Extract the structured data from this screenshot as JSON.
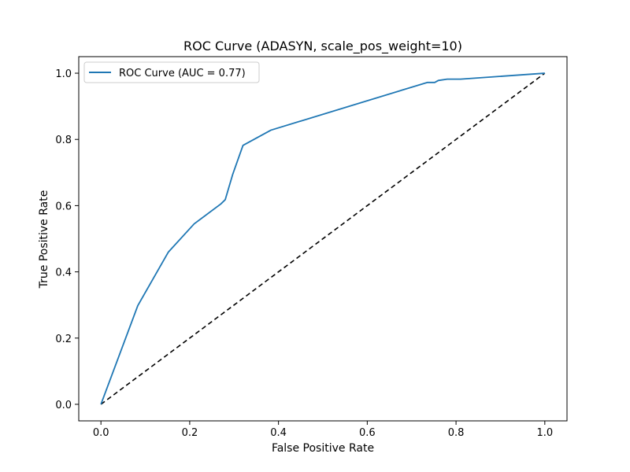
{
  "chart_data": {
    "type": "line",
    "title": "ROC Curve (ADASYN, scale_pos_weight=10)",
    "xlabel": "False Positive Rate",
    "ylabel": "True Positive Rate",
    "xlim": [
      -0.05,
      1.05
    ],
    "ylim": [
      -0.05,
      1.05
    ],
    "xticks": [
      "0.0",
      "0.2",
      "0.4",
      "0.6",
      "0.8",
      "1.0"
    ],
    "yticks": [
      "0.0",
      "0.2",
      "0.4",
      "0.6",
      "0.8",
      "1.0"
    ],
    "grid": false,
    "legend": "upper-left",
    "series": [
      {
        "name": "ROC Curve (AUC = 0.77)",
        "color": "#1f77b4",
        "style": "solid",
        "x": [
          0.0,
          0.083,
          0.152,
          0.21,
          0.27,
          0.28,
          0.297,
          0.32,
          0.383,
          0.735,
          0.752,
          0.76,
          0.78,
          0.81,
          1.0
        ],
        "y": [
          0.0,
          0.298,
          0.46,
          0.545,
          0.605,
          0.618,
          0.695,
          0.782,
          0.828,
          0.972,
          0.972,
          0.978,
          0.982,
          0.982,
          1.0
        ]
      },
      {
        "name": "",
        "color": "#000000",
        "style": "dashed",
        "x": [
          0.0,
          1.0
        ],
        "y": [
          0.0,
          1.0
        ]
      }
    ]
  }
}
